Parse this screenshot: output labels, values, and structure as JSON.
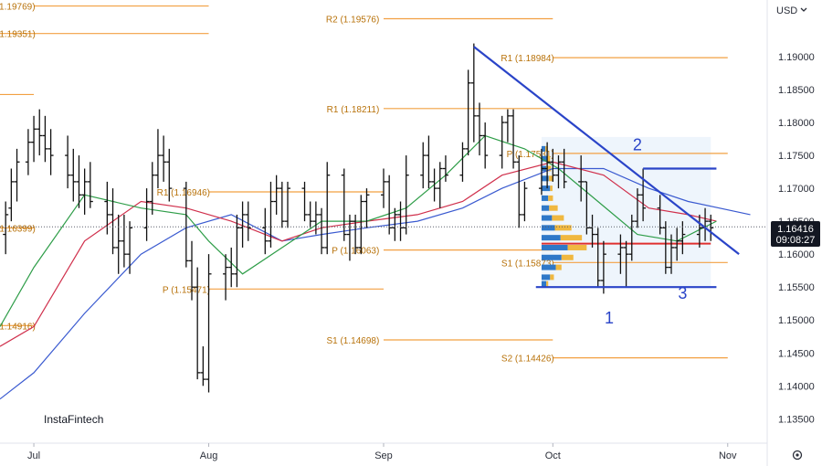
{
  "currency": "USD",
  "brand": "InstaFintech",
  "settings_icon": "gear-icon",
  "price_tag": {
    "price": "1.16416",
    "countdown": "09:08:27",
    "value": 1.16416
  },
  "colors": {
    "candle": "#111111",
    "pivot": "#f2a042",
    "pivot_text": "#b8720a",
    "wave": "#2a44c8",
    "ma_green": "#2e9d48",
    "ma_red": "#d0304c",
    "ma_blue": "#3a5ad0",
    "profile_blue": "#2f78c8",
    "profile_gold": "#f0b840",
    "poc": "#e03030",
    "box": "#cfe3f6"
  },
  "chart_data": {
    "type": "candlestick",
    "title": "",
    "xlabel": "",
    "ylabel": "",
    "ylim": [
      1.1313,
      1.1986
    ],
    "xlim": [
      "2025-06-25",
      "2025-11-08"
    ],
    "grid": false,
    "y_ticks": [
      "1.19000",
      "1.18500",
      "1.18000",
      "1.17500",
      "1.17000",
      "1.16500",
      "1.16000",
      "1.15500",
      "1.15000",
      "1.14500",
      "1.14000",
      "1.13500"
    ],
    "y_tick_values": [
      1.19,
      1.185,
      1.18,
      1.175,
      1.17,
      1.165,
      1.16,
      1.155,
      1.15,
      1.145,
      1.14,
      1.135
    ],
    "x_ticks": [
      {
        "label": "Jul",
        "date": "2025-07-01"
      },
      {
        "label": "Aug",
        "date": "2025-08-01"
      },
      {
        "label": "Sep",
        "date": "2025-09-01"
      },
      {
        "label": "Oct",
        "date": "2025-10-01"
      },
      {
        "label": "Nov",
        "date": "2025-11-01"
      }
    ],
    "pivot_levels": [
      {
        "label": "R2 (1.19769)",
        "value": 1.19769,
        "from": "2025-07-01",
        "to": "2025-08-01",
        "label_side": "left-of-end"
      },
      {
        "label": "(1.19351)",
        "value": 1.19351,
        "from": "2025-06-25",
        "to": "2025-08-01",
        "label_side": "start"
      },
      {
        "label": "",
        "value": 1.18425,
        "from": "2025-06-25",
        "to": "2025-07-01",
        "label_side": "none"
      },
      {
        "label": "(1.16399)",
        "value": 1.16399,
        "from": "2025-06-25",
        "to": "2025-07-01",
        "label_side": "start"
      },
      {
        "label": "(1.14916)",
        "value": 1.14916,
        "from": "2025-06-25",
        "to": "2025-07-01",
        "label_side": "start"
      },
      {
        "label": "P (1.15471)",
        "value": 1.15471,
        "from": "2025-08-01",
        "to": "2025-09-01",
        "label_side": "left-of-end"
      },
      {
        "label": "R1 (1.16946)",
        "value": 1.16946,
        "from": "2025-08-01",
        "to": "2025-09-01",
        "label_side": "left-of-end"
      },
      {
        "label": "R2 (1.19576)",
        "value": 1.19576,
        "from": "2025-09-01",
        "to": "2025-10-01",
        "label_side": "left-of-end"
      },
      {
        "label": "R1 (1.18211)",
        "value": 1.18211,
        "from": "2025-09-01",
        "to": "2025-10-01",
        "label_side": "left-of-end"
      },
      {
        "label": "P (1.16063)",
        "value": 1.16063,
        "from": "2025-09-01",
        "to": "2025-10-01",
        "label_side": "left-of-end"
      },
      {
        "label": "S1 (1.14698)",
        "value": 1.14698,
        "from": "2025-09-01",
        "to": "2025-10-01",
        "label_side": "left-of-end"
      },
      {
        "label": "R1 (1.18984)",
        "value": 1.18984,
        "from": "2025-10-01",
        "to": "2025-11-01",
        "label_side": "left-of-end"
      },
      {
        "label": "P (1.17531)",
        "value": 1.17531,
        "from": "2025-10-01",
        "to": "2025-11-01",
        "label_side": "left-of-end"
      },
      {
        "label": "S1 (1.15873)",
        "value": 1.15873,
        "from": "2025-10-01",
        "to": "2025-11-01",
        "label_side": "left-of-end"
      },
      {
        "label": "S2 (1.14426)",
        "value": 1.14426,
        "from": "2025-10-01",
        "to": "2025-11-01",
        "label_side": "left-of-end"
      }
    ],
    "candles": [
      [
        "2025-06-26",
        1.163,
        1.168,
        1.16,
        1.166
      ],
      [
        "2025-06-27",
        1.167,
        1.173,
        1.165,
        1.171
      ],
      [
        "2025-06-28",
        1.171,
        1.176,
        1.168,
        1.174
      ],
      [
        "2025-06-30",
        1.174,
        1.179,
        1.172,
        1.177
      ],
      [
        "2025-07-01",
        1.177,
        1.181,
        1.174,
        1.179
      ],
      [
        "2025-07-02",
        1.179,
        1.182,
        1.175,
        1.178
      ],
      [
        "2025-07-03",
        1.178,
        1.181,
        1.174,
        1.176
      ],
      [
        "2025-07-04",
        1.176,
        1.179,
        1.172,
        1.175
      ],
      [
        "2025-07-07",
        1.175,
        1.178,
        1.17,
        1.172
      ],
      [
        "2025-07-08",
        1.172,
        1.176,
        1.168,
        1.171
      ],
      [
        "2025-07-09",
        1.171,
        1.175,
        1.167,
        1.169
      ],
      [
        "2025-07-10",
        1.169,
        1.173,
        1.166,
        1.171
      ],
      [
        "2025-07-11",
        1.171,
        1.174,
        1.167,
        1.168
      ],
      [
        "2025-07-14",
        1.168,
        1.171,
        1.163,
        1.166
      ],
      [
        "2025-07-15",
        1.166,
        1.17,
        1.16,
        1.161
      ],
      [
        "2025-07-16",
        1.161,
        1.166,
        1.157,
        1.162
      ],
      [
        "2025-07-17",
        1.162,
        1.166,
        1.158,
        1.16
      ],
      [
        "2025-07-18",
        1.16,
        1.165,
        1.157,
        1.164
      ],
      [
        "2025-07-21",
        1.164,
        1.17,
        1.162,
        1.168
      ],
      [
        "2025-07-22",
        1.168,
        1.174,
        1.166,
        1.172
      ],
      [
        "2025-07-23",
        1.172,
        1.179,
        1.17,
        1.175
      ],
      [
        "2025-07-24",
        1.175,
        1.178,
        1.171,
        1.174
      ],
      [
        "2025-07-25",
        1.174,
        1.176,
        1.168,
        1.17
      ],
      [
        "2025-07-28",
        1.17,
        1.171,
        1.158,
        1.159
      ],
      [
        "2025-07-29",
        1.159,
        1.162,
        1.153,
        1.155
      ],
      [
        "2025-07-30",
        1.155,
        1.158,
        1.141,
        1.142
      ],
      [
        "2025-07-31",
        1.142,
        1.146,
        1.14,
        1.141
      ],
      [
        "2025-08-01",
        1.141,
        1.16,
        1.139,
        1.157
      ],
      [
        "2025-08-04",
        1.157,
        1.16,
        1.153,
        1.158
      ],
      [
        "2025-08-05",
        1.158,
        1.161,
        1.155,
        1.157
      ],
      [
        "2025-08-06",
        1.157,
        1.166,
        1.155,
        1.164
      ],
      [
        "2025-08-07",
        1.164,
        1.168,
        1.161,
        1.166
      ],
      [
        "2025-08-08",
        1.166,
        1.168,
        1.162,
        1.164
      ],
      [
        "2025-08-11",
        1.164,
        1.167,
        1.16,
        1.162
      ],
      [
        "2025-08-12",
        1.162,
        1.171,
        1.161,
        1.168
      ],
      [
        "2025-08-13",
        1.168,
        1.172,
        1.166,
        1.17
      ],
      [
        "2025-08-14",
        1.17,
        1.171,
        1.164,
        1.165
      ],
      [
        "2025-08-15",
        1.165,
        1.171,
        1.164,
        1.17
      ],
      [
        "2025-08-18",
        1.17,
        1.171,
        1.165,
        1.166
      ],
      [
        "2025-08-19",
        1.166,
        1.168,
        1.164,
        1.165
      ],
      [
        "2025-08-20",
        1.165,
        1.168,
        1.163,
        1.166
      ],
      [
        "2025-08-21",
        1.166,
        1.167,
        1.16,
        1.161
      ],
      [
        "2025-08-22",
        1.161,
        1.174,
        1.16,
        1.172
      ],
      [
        "2025-08-25",
        1.172,
        1.173,
        1.162,
        1.163
      ],
      [
        "2025-08-26",
        1.163,
        1.166,
        1.159,
        1.165
      ],
      [
        "2025-08-27",
        1.165,
        1.166,
        1.16,
        1.161
      ],
      [
        "2025-08-28",
        1.161,
        1.169,
        1.16,
        1.168
      ],
      [
        "2025-08-29",
        1.168,
        1.17,
        1.164,
        1.169
      ],
      [
        "2025-09-01",
        1.169,
        1.173,
        1.167,
        1.171
      ],
      [
        "2025-09-02",
        1.171,
        1.172,
        1.163,
        1.164
      ],
      [
        "2025-09-03",
        1.164,
        1.167,
        1.162,
        1.166
      ],
      [
        "2025-09-04",
        1.166,
        1.168,
        1.162,
        1.164
      ],
      [
        "2025-09-05",
        1.164,
        1.175,
        1.163,
        1.172
      ],
      [
        "2025-09-08",
        1.172,
        1.177,
        1.17,
        1.175
      ],
      [
        "2025-09-09",
        1.175,
        1.178,
        1.17,
        1.171
      ],
      [
        "2025-09-10",
        1.171,
        1.173,
        1.168,
        1.17
      ],
      [
        "2025-09-11",
        1.17,
        1.174,
        1.167,
        1.173
      ],
      [
        "2025-09-12",
        1.173,
        1.175,
        1.171,
        1.172
      ],
      [
        "2025-09-15",
        1.172,
        1.177,
        1.171,
        1.176
      ],
      [
        "2025-09-16",
        1.176,
        1.188,
        1.175,
        1.186
      ],
      [
        "2025-09-17",
        1.186,
        1.192,
        1.177,
        1.181
      ],
      [
        "2025-09-18",
        1.181,
        1.183,
        1.175,
        1.178
      ],
      [
        "2025-09-19",
        1.178,
        1.18,
        1.173,
        1.175
      ],
      [
        "2025-09-22",
        1.175,
        1.181,
        1.173,
        1.18
      ],
      [
        "2025-09-23",
        1.18,
        1.182,
        1.177,
        1.181
      ],
      [
        "2025-09-24",
        1.181,
        1.182,
        1.173,
        1.174
      ],
      [
        "2025-09-25",
        1.174,
        1.175,
        1.164,
        1.166
      ],
      [
        "2025-09-26",
        1.166,
        1.171,
        1.165,
        1.17
      ],
      [
        "2025-09-29",
        1.17,
        1.176,
        1.169,
        1.173
      ],
      [
        "2025-09-30",
        1.173,
        1.177,
        1.17,
        1.174
      ],
      [
        "2025-10-01",
        1.174,
        1.176,
        1.171,
        1.172
      ],
      [
        "2025-10-02",
        1.172,
        1.175,
        1.17,
        1.174
      ],
      [
        "2025-10-03",
        1.174,
        1.176,
        1.17,
        1.171
      ],
      [
        "2025-10-06",
        1.171,
        1.175,
        1.168,
        1.171
      ],
      [
        "2025-10-07",
        1.171,
        1.171,
        1.163,
        1.164
      ],
      [
        "2025-10-08",
        1.164,
        1.166,
        1.161,
        1.163
      ],
      [
        "2025-10-09",
        1.163,
        1.164,
        1.155,
        1.156
      ],
      [
        "2025-10-10",
        1.156,
        1.162,
        1.154,
        1.16
      ],
      [
        "2025-10-13",
        1.16,
        1.163,
        1.157,
        1.161
      ],
      [
        "2025-10-14",
        1.161,
        1.162,
        1.155,
        1.16
      ],
      [
        "2025-10-15",
        1.16,
        1.166,
        1.159,
        1.165
      ],
      [
        "2025-10-16",
        1.165,
        1.17,
        1.164,
        1.169
      ],
      [
        "2025-10-17",
        1.169,
        1.173,
        1.165,
        1.167
      ],
      [
        "2025-10-20",
        1.167,
        1.169,
        1.163,
        1.164
      ],
      [
        "2025-10-21",
        1.164,
        1.165,
        1.157,
        1.158
      ],
      [
        "2025-10-22",
        1.158,
        1.163,
        1.157,
        1.161
      ],
      [
        "2025-10-23",
        1.161,
        1.164,
        1.159,
        1.162
      ],
      [
        "2025-10-24",
        1.162,
        1.165,
        1.16,
        1.163
      ],
      [
        "2025-10-27",
        1.163,
        1.166,
        1.161,
        1.164
      ],
      [
        "2025-10-28",
        1.164,
        1.167,
        1.162,
        1.165
      ],
      [
        "2025-10-29",
        1.165,
        1.166,
        1.162,
        1.164
      ]
    ],
    "ma_green": [
      [
        "2025-06-25",
        1.149
      ],
      [
        "2025-07-01",
        1.158
      ],
      [
        "2025-07-10",
        1.169
      ],
      [
        "2025-07-20",
        1.167
      ],
      [
        "2025-07-28",
        1.166
      ],
      [
        "2025-08-01",
        1.162
      ],
      [
        "2025-08-07",
        1.157
      ],
      [
        "2025-08-14",
        1.161
      ],
      [
        "2025-08-21",
        1.165
      ],
      [
        "2025-08-29",
        1.165
      ],
      [
        "2025-09-05",
        1.167
      ],
      [
        "2025-09-12",
        1.172
      ],
      [
        "2025-09-19",
        1.178
      ],
      [
        "2025-09-26",
        1.176
      ],
      [
        "2025-10-02",
        1.173
      ],
      [
        "2025-10-09",
        1.168
      ],
      [
        "2025-10-16",
        1.163
      ],
      [
        "2025-10-23",
        1.162
      ],
      [
        "2025-10-30",
        1.165
      ]
    ],
    "ma_red": [
      [
        "2025-06-25",
        1.146
      ],
      [
        "2025-07-01",
        1.149
      ],
      [
        "2025-07-10",
        1.162
      ],
      [
        "2025-07-20",
        1.168
      ],
      [
        "2025-07-28",
        1.167
      ],
      [
        "2025-08-05",
        1.165
      ],
      [
        "2025-08-14",
        1.162
      ],
      [
        "2025-08-21",
        1.164
      ],
      [
        "2025-08-29",
        1.165
      ],
      [
        "2025-09-07",
        1.166
      ],
      [
        "2025-09-15",
        1.168
      ],
      [
        "2025-09-22",
        1.172
      ],
      [
        "2025-10-01",
        1.174
      ],
      [
        "2025-10-10",
        1.172
      ],
      [
        "2025-10-18",
        1.167
      ],
      [
        "2025-10-25",
        1.166
      ],
      [
        "2025-10-30",
        1.165
      ]
    ],
    "ma_blue": [
      [
        "2025-06-25",
        1.138
      ],
      [
        "2025-07-01",
        1.142
      ],
      [
        "2025-07-10",
        1.151
      ],
      [
        "2025-07-20",
        1.16
      ],
      [
        "2025-07-28",
        1.164
      ],
      [
        "2025-08-05",
        1.166
      ],
      [
        "2025-08-14",
        1.162
      ],
      [
        "2025-08-21",
        1.163
      ],
      [
        "2025-08-29",
        1.164
      ],
      [
        "2025-09-07",
        1.165
      ],
      [
        "2025-09-15",
        1.167
      ],
      [
        "2025-09-22",
        1.17
      ],
      [
        "2025-10-01",
        1.173
      ],
      [
        "2025-10-10",
        1.173
      ],
      [
        "2025-10-18",
        1.17
      ],
      [
        "2025-10-25",
        1.168
      ],
      [
        "2025-11-05",
        1.166
      ]
    ],
    "trendline": [
      [
        "2025-09-17",
        1.1915
      ],
      [
        "2025-11-03",
        1.16
      ]
    ],
    "wave_lines": [
      {
        "from": [
          "2025-10-17",
          1.173
        ],
        "to": [
          "2025-10-30",
          1.173
        ]
      },
      {
        "from": [
          "2025-09-28",
          1.155
        ],
        "to": [
          "2025-10-30",
          1.155
        ]
      }
    ],
    "wave_labels": [
      {
        "text": "1",
        "x": "2025-10-11",
        "y": 1.1495
      },
      {
        "text": "2",
        "x": "2025-10-16",
        "y": 1.1758
      },
      {
        "text": "3",
        "x": "2025-10-24",
        "y": 1.1532
      }
    ],
    "volume_profile": {
      "from": "2025-09-29",
      "to": "2025-10-29",
      "top": 1.1778,
      "bottom": 1.1548,
      "poc": 1.1616,
      "levels": [
        [
          1.176,
          0.08,
          0.05
        ],
        [
          1.1745,
          0.12,
          0.06
        ],
        [
          1.173,
          0.1,
          0.1
        ],
        [
          1.1715,
          0.15,
          0.08
        ],
        [
          1.17,
          0.18,
          0.05
        ],
        [
          1.1685,
          0.14,
          0.1
        ],
        [
          1.167,
          0.16,
          0.18
        ],
        [
          1.1655,
          0.22,
          0.25
        ],
        [
          1.164,
          0.28,
          0.35
        ],
        [
          1.1625,
          0.4,
          0.45
        ],
        [
          1.161,
          0.55,
          0.4
        ],
        [
          1.1595,
          0.42,
          0.25
        ],
        [
          1.158,
          0.3,
          0.12
        ],
        [
          1.1565,
          0.18,
          0.08
        ],
        [
          1.1555,
          0.1,
          0.04
        ]
      ]
    }
  }
}
